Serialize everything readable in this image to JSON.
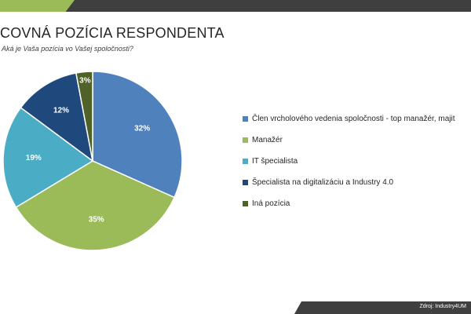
{
  "header": {
    "title": "COVNÁ POZÍCIA RESPONDENTA",
    "subtitle": "Aká je Vaša pozícia vo Vašej spoločnosti?"
  },
  "chart_data": {
    "type": "pie",
    "start_angle_deg": 0,
    "direction": "clockwise",
    "legend_position": "right",
    "slices": [
      {
        "name": "Člen vrcholového vedenia spoločnosti - top manažér, majit",
        "value": 32,
        "label": "32%",
        "color": "#4f81bd"
      },
      {
        "name": "Manažér",
        "value": 35,
        "label": "35%",
        "color": "#9bbb59"
      },
      {
        "name": "IT špecialista",
        "value": 19,
        "label": "19%",
        "color": "#4bacc6"
      },
      {
        "name": "Špecialista na digitalizáciu a Industry 4.0",
        "value": 12,
        "label": "12%",
        "color": "#1f497d"
      },
      {
        "name": "Iná pozícia",
        "value": 3,
        "label": "3%",
        "color": "#4f6228"
      }
    ]
  },
  "footer": {
    "source": "Zdroj: Industry4UM"
  }
}
